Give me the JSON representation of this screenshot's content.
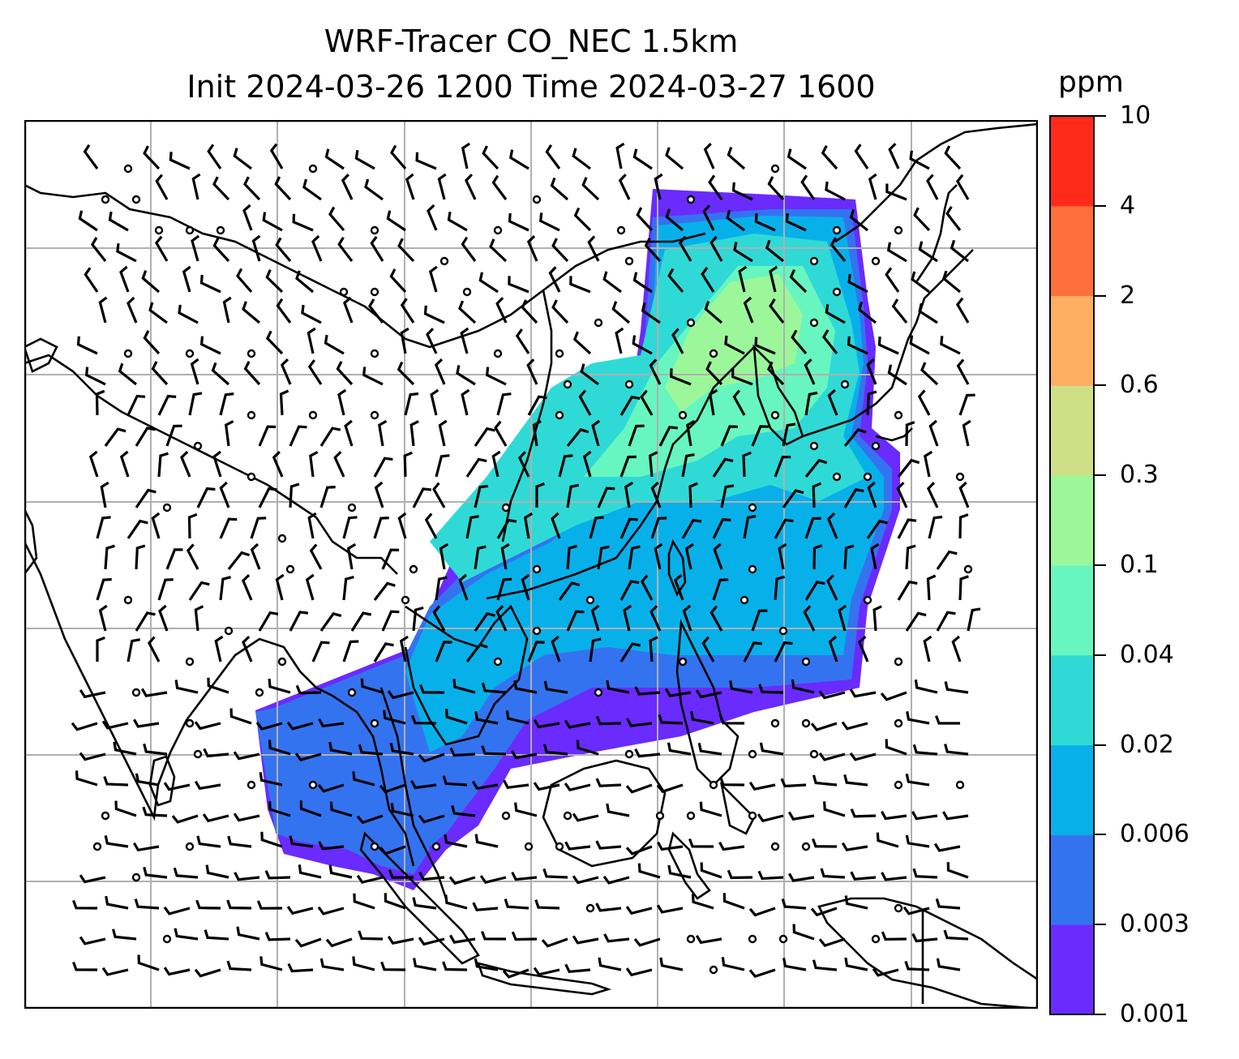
{
  "title": {
    "line1": "WRF-Tracer CO_NEC 1.5km",
    "line2": "Init 2024-03-26 1200 Time 2024-03-27 1600"
  },
  "colorbar": {
    "unit": "ppm",
    "levels": [
      "0.001",
      "0.003",
      "0.006",
      "0.02",
      "0.04",
      "0.1",
      "0.3",
      "0.6",
      "2",
      "4",
      "10"
    ],
    "colors": [
      "#6a2bff",
      "#3473f0",
      "#08b0ea",
      "#2fdad6",
      "#67f6c0",
      "#9cf79a",
      "#cfdf86",
      "#fdae61",
      "#ff6f3c",
      "#ff2a1a"
    ]
  },
  "map": {
    "background": "#ffffff",
    "gridline_color": "#b0b0b0",
    "coastline_color": "#000000"
  }
}
